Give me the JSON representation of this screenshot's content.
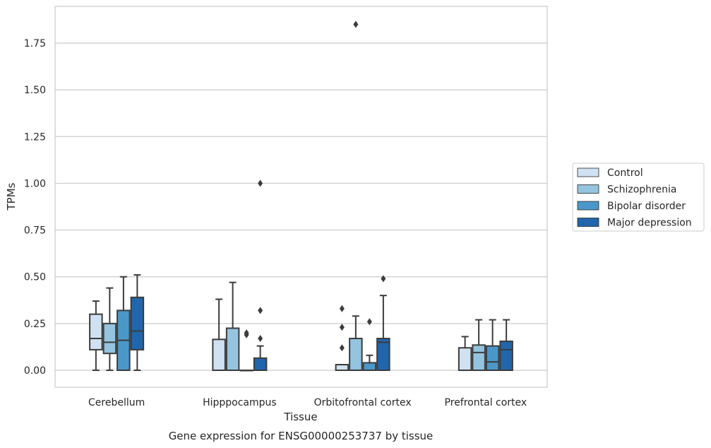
{
  "chart_data": {
    "type": "box",
    "title": "Gene expression for ENSG00000253737 by tissue",
    "xlabel": "Tissue",
    "ylabel": "TPMs",
    "ylim": [
      -0.09,
      1.95
    ],
    "yticks": [
      0.0,
      0.25,
      0.5,
      0.75,
      1.0,
      1.25,
      1.5,
      1.75
    ],
    "ytick_labels": [
      "0.00",
      "0.25",
      "0.50",
      "0.75",
      "1.00",
      "1.25",
      "1.50",
      "1.75"
    ],
    "grid": "horizontal",
    "legend_position": "right",
    "categories": [
      "Cerebellum",
      "Hipppocampus",
      "Orbitofrontal cortex",
      "Prefrontal cortex"
    ],
    "series": [
      {
        "name": "Control",
        "color": "#d0e1f2",
        "boxes": [
          {
            "whislo": 0.0,
            "q1": 0.11,
            "med": 0.17,
            "q3": 0.3,
            "whishi": 0.37,
            "fliers": []
          },
          {
            "whislo": 0.0,
            "q1": 0.0,
            "med": 0.0,
            "q3": 0.165,
            "whishi": 0.38,
            "fliers": []
          },
          {
            "whislo": 0.0,
            "q1": 0.0,
            "med": 0.0,
            "q3": 0.03,
            "whishi": 0.03,
            "fliers": [
              0.12,
              0.23,
              0.33
            ]
          },
          {
            "whislo": 0.0,
            "q1": 0.0,
            "med": 0.0,
            "q3": 0.12,
            "whishi": 0.18,
            "fliers": []
          }
        ]
      },
      {
        "name": "Schizophrenia",
        "color": "#94c4df",
        "boxes": [
          {
            "whislo": 0.0,
            "q1": 0.09,
            "med": 0.15,
            "q3": 0.25,
            "whishi": 0.44,
            "fliers": []
          },
          {
            "whislo": 0.0,
            "q1": 0.0,
            "med": 0.0,
            "q3": 0.225,
            "whishi": 0.47,
            "fliers": []
          },
          {
            "whislo": 0.0,
            "q1": 0.0,
            "med": 0.0,
            "q3": 0.17,
            "whishi": 0.29,
            "fliers": [
              1.85
            ]
          },
          {
            "whislo": 0.0,
            "q1": 0.0,
            "med": 0.095,
            "q3": 0.135,
            "whishi": 0.27,
            "fliers": []
          }
        ]
      },
      {
        "name": "Bipolar disorder",
        "color": "#4a98c9",
        "boxes": [
          {
            "whislo": 0.0,
            "q1": 0.0,
            "med": 0.16,
            "q3": 0.32,
            "whishi": 0.5,
            "fliers": []
          },
          {
            "whislo": 0.0,
            "q1": 0.0,
            "med": 0.0,
            "q3": 0.0,
            "whishi": 0.0,
            "fliers": [
              0.19,
              0.2
            ]
          },
          {
            "whislo": 0.0,
            "q1": 0.0,
            "med": 0.0,
            "q3": 0.04,
            "whishi": 0.08,
            "fliers": [
              0.26
            ]
          },
          {
            "whislo": 0.0,
            "q1": 0.0,
            "med": 0.045,
            "q3": 0.13,
            "whishi": 0.27,
            "fliers": []
          }
        ]
      },
      {
        "name": "Major depression",
        "color": "#2166ac",
        "boxes": [
          {
            "whislo": 0.0,
            "q1": 0.11,
            "med": 0.21,
            "q3": 0.39,
            "whishi": 0.51,
            "fliers": []
          },
          {
            "whislo": 0.0,
            "q1": 0.0,
            "med": 0.0,
            "q3": 0.065,
            "whishi": 0.13,
            "fliers": [
              0.17,
              0.32,
              1.0
            ]
          },
          {
            "whislo": 0.0,
            "q1": 0.0,
            "med": 0.15,
            "q3": 0.17,
            "whishi": 0.4,
            "fliers": [
              0.49
            ]
          },
          {
            "whislo": 0.0,
            "q1": 0.0,
            "med": 0.11,
            "q3": 0.155,
            "whishi": 0.27,
            "fliers": []
          }
        ]
      }
    ]
  }
}
